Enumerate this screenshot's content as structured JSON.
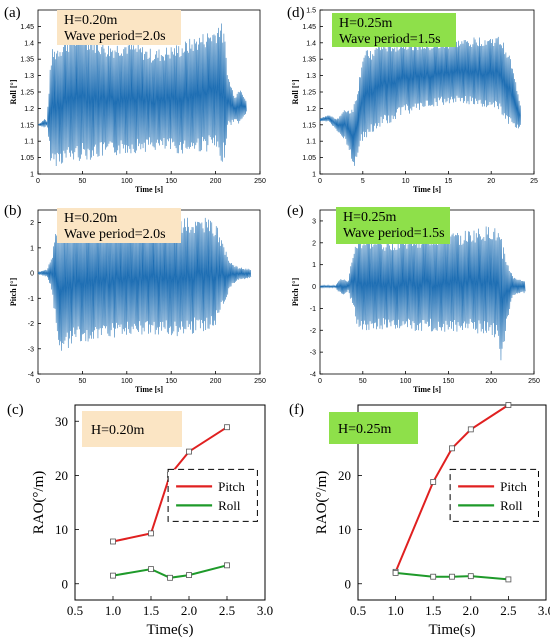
{
  "chart_data": [
    {
      "id": "a",
      "panel_label": "(a)",
      "type": "line",
      "annotation_lines": [
        "H=0.20m",
        "Wave period=2.0s"
      ],
      "annotation_color": "#fbe5c4",
      "xlabel": "Time [s]",
      "ylabel": "Roll [°]",
      "xlim": [
        0,
        250
      ],
      "ylim": [
        1.0,
        1.5
      ],
      "xticks": [
        0,
        50,
        100,
        150,
        200,
        250
      ],
      "yticks": [
        1,
        1.05,
        1.1,
        1.15,
        1.2,
        1.25,
        1.3,
        1.35,
        1.4,
        1.45
      ],
      "x_end": 235,
      "envelope": [
        [
          0,
          1.15,
          1.15
        ],
        [
          8,
          1.14,
          1.17
        ],
        [
          10,
          1.15,
          1.16
        ],
        [
          15,
          1.02,
          1.38
        ],
        [
          30,
          1.03,
          1.42
        ],
        [
          50,
          1.04,
          1.44
        ],
        [
          80,
          1.05,
          1.4
        ],
        [
          100,
          1.06,
          1.41
        ],
        [
          130,
          1.07,
          1.38
        ],
        [
          160,
          1.06,
          1.4
        ],
        [
          200,
          1.07,
          1.45
        ],
        [
          205,
          1.01,
          1.48
        ],
        [
          210,
          1.05,
          1.43
        ],
        [
          214,
          1.14,
          1.3
        ],
        [
          222,
          1.16,
          1.24
        ],
        [
          228,
          1.15,
          1.27
        ],
        [
          235,
          1.19,
          1.22
        ]
      ],
      "line_color": "#1f6fb4"
    },
    {
      "id": "d",
      "panel_label": "(d)",
      "type": "line",
      "annotation_lines": [
        "H=0.25m",
        "Wave period=1.5s"
      ],
      "annotation_color": "#8ee04a",
      "xlabel": "Time [s]",
      "ylabel": "Roll [°]",
      "xlim": [
        0,
        25
      ],
      "ylim": [
        1.0,
        1.5
      ],
      "xticks": [
        0,
        5,
        10,
        15,
        20,
        25
      ],
      "yticks": [
        1,
        1.05,
        1.1,
        1.15,
        1.2,
        1.25,
        1.3,
        1.35,
        1.4,
        1.45,
        1.5
      ],
      "x_end": 23.5,
      "envelope": [
        [
          0,
          1.16,
          1.17
        ],
        [
          1,
          1.16,
          1.18
        ],
        [
          2,
          1.13,
          1.17
        ],
        [
          3,
          1.1,
          1.2
        ],
        [
          3.6,
          1.05,
          1.2
        ],
        [
          4,
          1.02,
          1.22
        ],
        [
          4.5,
          1.07,
          1.28
        ],
        [
          5,
          1.1,
          1.37
        ],
        [
          7,
          1.14,
          1.4
        ],
        [
          10,
          1.18,
          1.41
        ],
        [
          13,
          1.2,
          1.4
        ],
        [
          16,
          1.22,
          1.41
        ],
        [
          19,
          1.2,
          1.42
        ],
        [
          21,
          1.19,
          1.42
        ],
        [
          22,
          1.15,
          1.38
        ],
        [
          23,
          1.13,
          1.27
        ],
        [
          23.5,
          1.15,
          1.2
        ]
      ],
      "line_color": "#1f6fb4"
    },
    {
      "id": "b",
      "panel_label": "(b)",
      "type": "line",
      "annotation_lines": [
        "H=0.20m",
        "Wave period=2.0s"
      ],
      "annotation_color": "#fbe5c4",
      "xlabel": "Time [s]",
      "ylabel": "Pitch [°]",
      "xlim": [
        0,
        250
      ],
      "ylim": [
        -4,
        2.5
      ],
      "xticks": [
        0,
        50,
        100,
        150,
        200,
        250
      ],
      "yticks": [
        -4,
        -3,
        -2,
        -1,
        0,
        1,
        2
      ],
      "x_end": 240,
      "envelope": [
        [
          0,
          -0.05,
          0.05
        ],
        [
          10,
          -0.15,
          0.15
        ],
        [
          15,
          -0.6,
          0.6
        ],
        [
          20,
          -2.0,
          1.6
        ],
        [
          25,
          -3.3,
          1.9
        ],
        [
          40,
          -2.8,
          2.0
        ],
        [
          80,
          -2.6,
          2.1
        ],
        [
          120,
          -2.5,
          2.1
        ],
        [
          160,
          -2.5,
          2.2
        ],
        [
          190,
          -2.3,
          2.2
        ],
        [
          200,
          -2.1,
          2.0
        ],
        [
          210,
          -1.2,
          1.0
        ],
        [
          218,
          -0.5,
          0.4
        ],
        [
          225,
          -0.3,
          0.25
        ],
        [
          240,
          -0.2,
          0.15
        ]
      ],
      "line_color": "#1f6fb4"
    },
    {
      "id": "e",
      "panel_label": "(e)",
      "type": "line",
      "annotation_lines": [
        "H=0.25m",
        "Wave period=1.5s"
      ],
      "annotation_color": "#8ee04a",
      "xlabel": "Time [s]",
      "ylabel": "Pitch [°]",
      "xlim": [
        0,
        250
      ],
      "ylim": [
        -4,
        3.5
      ],
      "xticks": [
        0,
        50,
        100,
        150,
        200,
        250
      ],
      "yticks": [
        -4,
        -3,
        -2,
        -1,
        0,
        1,
        2,
        3
      ],
      "x_end": 240,
      "envelope": [
        [
          0,
          -0.05,
          0.05
        ],
        [
          18,
          -0.05,
          0.05
        ],
        [
          22,
          -0.3,
          0.3
        ],
        [
          28,
          -0.4,
          0.4
        ],
        [
          33,
          -0.2,
          0.2
        ],
        [
          38,
          -1.0,
          1.5
        ],
        [
          45,
          -2.0,
          2.3
        ],
        [
          80,
          -2.0,
          2.2
        ],
        [
          120,
          -2.1,
          2.4
        ],
        [
          160,
          -2.1,
          2.5
        ],
        [
          200,
          -2.2,
          2.8
        ],
        [
          208,
          -2.5,
          2.6
        ],
        [
          212,
          -3.7,
          2.2
        ],
        [
          218,
          -1.8,
          1.3
        ],
        [
          225,
          -0.5,
          0.5
        ],
        [
          235,
          -0.3,
          0.3
        ]
      ],
      "line_color": "#1f6fb4"
    },
    {
      "id": "c",
      "panel_label": "(c)",
      "type": "line",
      "annotation_lines": [
        "H=0.20m"
      ],
      "annotation_color": "#fbe5c4",
      "xlabel": "Time(s)",
      "ylabel": "RAO(°/m)",
      "xlim": [
        0.5,
        3.0
      ],
      "ylim": [
        -3,
        33
      ],
      "xticks": [
        0.5,
        1.0,
        1.5,
        2.0,
        2.5,
        3.0
      ],
      "yticks": [
        0,
        10,
        20,
        30
      ],
      "legend_position": "center-right",
      "series": [
        {
          "name": "Pitch",
          "color": "#e02020",
          "x": [
            1.0,
            1.5,
            1.75,
            2.0,
            2.5
          ],
          "values": [
            7.8,
            9.3,
            20.1,
            24.4,
            28.9
          ]
        },
        {
          "name": "Roll",
          "color": "#1e9a2a",
          "x": [
            1.0,
            1.5,
            1.75,
            2.0,
            2.5
          ],
          "values": [
            1.5,
            2.7,
            1.1,
            1.6,
            3.4
          ]
        }
      ]
    },
    {
      "id": "f",
      "panel_label": "(f)",
      "type": "line",
      "annotation_lines": [
        "H=0.25m"
      ],
      "annotation_color": "#8ee04a",
      "xlabel": "Time(s)",
      "ylabel": "RAO(°/m)",
      "xlim": [
        0.5,
        3.0
      ],
      "ylim": [
        -3,
        33
      ],
      "xticks": [
        0.5,
        1.0,
        1.5,
        2.0,
        2.5,
        3.0
      ],
      "yticks": [
        0,
        10,
        20,
        30
      ],
      "legend_position": "center-right",
      "series": [
        {
          "name": "Pitch",
          "color": "#e02020",
          "x": [
            1.0,
            1.5,
            1.75,
            2.0,
            2.5
          ],
          "values": [
            2.2,
            18.8,
            25.0,
            28.5,
            33.0
          ]
        },
        {
          "name": "Roll",
          "color": "#1e9a2a",
          "x": [
            1.0,
            1.5,
            1.75,
            2.0,
            2.5
          ],
          "values": [
            2.0,
            1.3,
            1.3,
            1.4,
            0.8
          ]
        }
      ]
    }
  ]
}
